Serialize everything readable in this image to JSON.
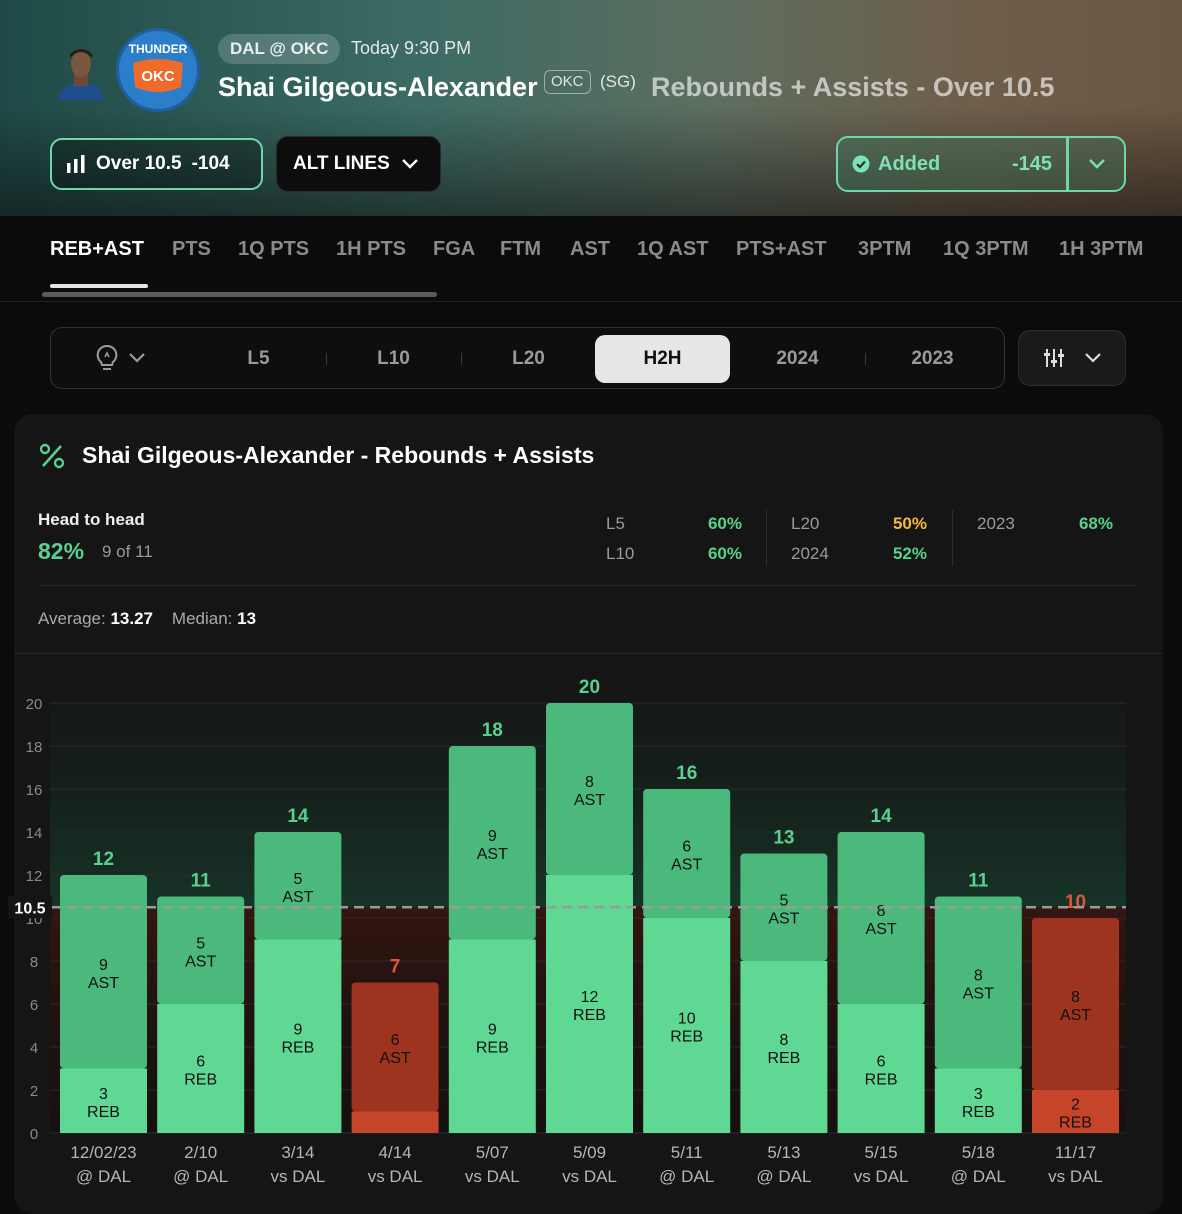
{
  "header": {
    "matchup": "DAL @ OKC",
    "game_time": "Today 9:30 PM",
    "player_name": "Shai Gilgeous-Alexander",
    "team": "OKC",
    "position": "(SG)",
    "prop_title": "Rebounds + Assists - Over 10.5",
    "over_label": "Over 10.5",
    "over_odds": "-104",
    "alt_lines_label": "ALT LINES",
    "added_label": "Added",
    "added_odds": "-145",
    "team_logo_text": "THUNDER",
    "team_logo_abbr": "OKC",
    "colors": {
      "accent": "#6fd6a8",
      "logo": "#2b7ec9"
    }
  },
  "tabs": [
    "REB+AST",
    "PTS",
    "1Q PTS",
    "1H PTS",
    "FGA",
    "FTM",
    "AST",
    "1Q AST",
    "PTS+AST",
    "3PTM",
    "1Q 3PTM",
    "1H 3PTM"
  ],
  "active_tab": "REB+AST",
  "ranges": [
    "L5",
    "L10",
    "L20",
    "H2H",
    "2024",
    "2023"
  ],
  "active_range": "H2H",
  "card": {
    "title": "Shai Gilgeous-Alexander - Rebounds + Assists",
    "h2h_label": "Head to head",
    "h2h_pct": "82%",
    "h2h_count": "9 of 11",
    "stats": [
      {
        "label": "L5",
        "value": "60%",
        "color": "#58d18e"
      },
      {
        "label": "L10",
        "value": "60%",
        "color": "#58d18e"
      },
      {
        "label": "L20",
        "value": "50%",
        "color": "#f5b942"
      },
      {
        "label": "2024",
        "value": "52%",
        "color": "#58d18e"
      },
      {
        "label": "2023",
        "value": "68%",
        "color": "#58d18e"
      }
    ],
    "average_label": "Average:",
    "average_value": "13.27",
    "median_label": "Median:",
    "median_value": "13"
  },
  "chart_data": {
    "type": "bar",
    "stacked": true,
    "line": 10.5,
    "line_label": "10.5",
    "ylim": [
      0,
      20
    ],
    "yticks": [
      0,
      2,
      4,
      6,
      8,
      10,
      12,
      14,
      16,
      18,
      20
    ],
    "games": [
      {
        "date": "12/02/23",
        "opp": "@ DAL",
        "reb": 3,
        "ast": 9,
        "total": 12
      },
      {
        "date": "2/10",
        "opp": "@ DAL",
        "reb": 6,
        "ast": 5,
        "total": 11
      },
      {
        "date": "3/14",
        "opp": "vs DAL",
        "reb": 9,
        "ast": 5,
        "total": 14
      },
      {
        "date": "4/14",
        "opp": "vs DAL",
        "reb": 1,
        "ast": 6,
        "total": 7
      },
      {
        "date": "5/07",
        "opp": "vs DAL",
        "reb": 9,
        "ast": 9,
        "total": 18
      },
      {
        "date": "5/09",
        "opp": "vs DAL",
        "reb": 12,
        "ast": 8,
        "total": 20
      },
      {
        "date": "5/11",
        "opp": "@ DAL",
        "reb": 10,
        "ast": 6,
        "total": 16
      },
      {
        "date": "5/13",
        "opp": "@ DAL",
        "reb": 8,
        "ast": 5,
        "total": 13
      },
      {
        "date": "5/15",
        "opp": "vs DAL",
        "reb": 6,
        "ast": 8,
        "total": 14
      },
      {
        "date": "5/18",
        "opp": "@ DAL",
        "reb": 3,
        "ast": 8,
        "total": 11
      },
      {
        "date": "11/17",
        "opp": "vs DAL",
        "reb": 2,
        "ast": 8,
        "total": 10
      }
    ],
    "colors": {
      "over_reb": "#5fd894",
      "over_ast": "#4cb97c",
      "under_reb": "#c5442a",
      "under_ast": "#9e341f",
      "over_label": "#58d18e",
      "under_label": "#e0553a"
    }
  }
}
